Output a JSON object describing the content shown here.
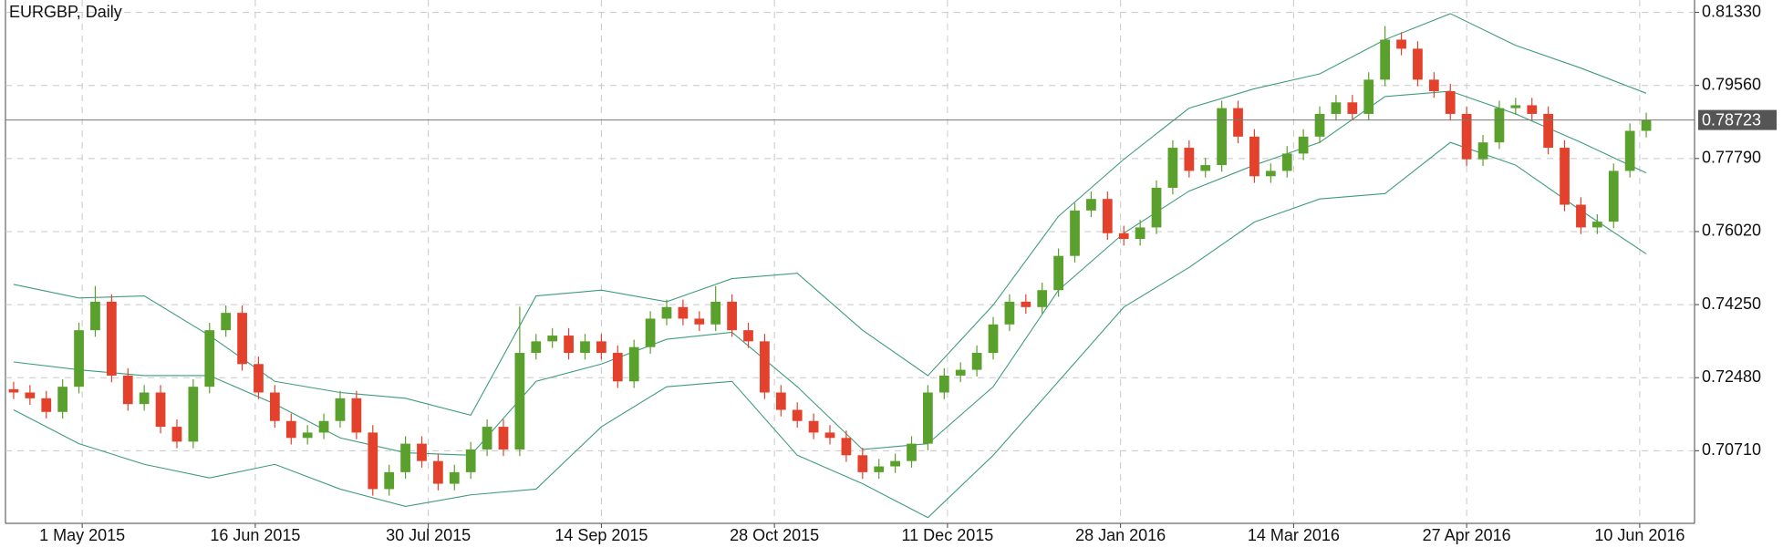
{
  "chart_data": {
    "type": "candlestick",
    "title": "EURGBP, Daily",
    "up_color": "#5aa02c",
    "down_color": "#e3412b",
    "grid": true,
    "xlim": [
      -0.5,
      100.5
    ],
    "xticks": [
      {
        "value": 4.2,
        "label": "1 May 2015"
      },
      {
        "value": 14.8,
        "label": "16 Jun 2015"
      },
      {
        "value": 25.4,
        "label": "30 Jul 2015"
      },
      {
        "value": 36,
        "label": "14 Sep 2015"
      },
      {
        "value": 46.6,
        "label": "28 Oct 2015"
      },
      {
        "value": 57.2,
        "label": "11 Dec 2015"
      },
      {
        "value": 67.8,
        "label": "28 Jan 2016"
      },
      {
        "value": 78.4,
        "label": "14 Mar 2016"
      },
      {
        "value": 89,
        "label": "27 Apr 2016"
      },
      {
        "value": 99.6,
        "label": "10 Jun 2016"
      }
    ],
    "ylim": [
      0.6895,
      0.8163
    ],
    "yticks": [
      {
        "value": 0.8133,
        "label": "0.81330"
      },
      {
        "value": 0.7956,
        "label": "0.79560"
      },
      {
        "value": 0.7779,
        "label": "0.77790"
      },
      {
        "value": 0.7602,
        "label": "0.76020"
      },
      {
        "value": 0.7425,
        "label": "0.74250"
      },
      {
        "value": 0.7248,
        "label": "0.72480"
      },
      {
        "value": 0.7071,
        "label": "0.70710"
      }
    ],
    "last_price": 0.78723,
    "open": [
      0.722,
      0.7212,
      0.7198,
      0.7165,
      0.7226,
      0.7363,
      0.7432,
      0.7253,
      0.7184,
      0.7212,
      0.7129,
      0.7093,
      0.7226,
      0.7363,
      0.7405,
      0.7281,
      0.7212,
      0.7143,
      0.7102,
      0.7115,
      0.7143,
      0.7198,
      0.7115,
      0.6978,
      0.7019,
      0.7088,
      0.7046,
      0.6991,
      0.7019,
      0.7074,
      0.7129,
      0.7074,
      0.7308,
      0.7336,
      0.735,
      0.7308,
      0.7336,
      0.7308,
      0.7239,
      0.7322,
      0.7391,
      0.7419,
      0.7391,
      0.7377,
      0.7432,
      0.7363,
      0.7336,
      0.7212,
      0.717,
      0.7143,
      0.7115,
      0.7102,
      0.706,
      0.7019,
      0.7033,
      0.7046,
      0.7088,
      0.7212,
      0.7253,
      0.7267,
      0.7308,
      0.7377,
      0.7432,
      0.7419,
      0.746,
      0.7543,
      0.7653,
      0.7681,
      0.7598,
      0.7584,
      0.7612,
      0.7708,
      0.7805,
      0.7749,
      0.7763,
      0.7901,
      0.7832,
      0.7736,
      0.7749,
      0.7791,
      0.7832,
      0.7887,
      0.7915,
      0.7887,
      0.797,
      0.8067,
      0.8045,
      0.797,
      0.7942,
      0.7887,
      0.7777,
      0.7818,
      0.7901,
      0.7908,
      0.7887,
      0.7805,
      0.7667,
      0.7612,
      0.7626,
      0.7749,
      0.7846
    ],
    "high": [
      0.7238,
      0.723,
      0.7216,
      0.7244,
      0.7381,
      0.747,
      0.745,
      0.7271,
      0.723,
      0.723,
      0.7147,
      0.7244,
      0.7381,
      0.7423,
      0.7423,
      0.7299,
      0.723,
      0.7161,
      0.7133,
      0.7161,
      0.7216,
      0.7216,
      0.7133,
      0.7037,
      0.7106,
      0.7106,
      0.7064,
      0.7037,
      0.7092,
      0.7147,
      0.7147,
      0.742,
      0.7354,
      0.7368,
      0.7368,
      0.7354,
      0.7354,
      0.7326,
      0.734,
      0.7409,
      0.7437,
      0.7437,
      0.7409,
      0.747,
      0.745,
      0.7381,
      0.7354,
      0.723,
      0.7188,
      0.7161,
      0.7133,
      0.712,
      0.7078,
      0.7051,
      0.7064,
      0.7106,
      0.723,
      0.7271,
      0.7285,
      0.7326,
      0.7395,
      0.745,
      0.745,
      0.7478,
      0.7561,
      0.7671,
      0.7699,
      0.7699,
      0.7616,
      0.763,
      0.7726,
      0.7823,
      0.7823,
      0.7781,
      0.7919,
      0.7919,
      0.785,
      0.7767,
      0.7809,
      0.785,
      0.7905,
      0.7933,
      0.7933,
      0.7988,
      0.81,
      0.8085,
      0.8063,
      0.7988,
      0.796,
      0.7905,
      0.7836,
      0.7919,
      0.7926,
      0.7926,
      0.7905,
      0.7823,
      0.7685,
      0.7644,
      0.7767,
      0.7864,
      0.789
    ],
    "low": [
      0.7196,
      0.7182,
      0.7149,
      0.7149,
      0.721,
      0.7347,
      0.7237,
      0.7168,
      0.7168,
      0.7113,
      0.7077,
      0.7077,
      0.721,
      0.7347,
      0.7265,
      0.7196,
      0.7127,
      0.7086,
      0.7086,
      0.7099,
      0.7127,
      0.7099,
      0.6962,
      0.6962,
      0.7003,
      0.703,
      0.6975,
      0.6975,
      0.7003,
      0.7058,
      0.7058,
      0.7058,
      0.7292,
      0.732,
      0.7292,
      0.7292,
      0.7292,
      0.7223,
      0.7223,
      0.7306,
      0.7375,
      0.7375,
      0.7361,
      0.7361,
      0.7347,
      0.732,
      0.7196,
      0.7154,
      0.7127,
      0.7099,
      0.7086,
      0.7044,
      0.7003,
      0.7003,
      0.7017,
      0.703,
      0.7072,
      0.7196,
      0.7237,
      0.7251,
      0.7292,
      0.7361,
      0.7403,
      0.7403,
      0.7444,
      0.7527,
      0.7637,
      0.7582,
      0.7568,
      0.7568,
      0.7596,
      0.7692,
      0.7733,
      0.7733,
      0.7747,
      0.7816,
      0.772,
      0.772,
      0.7733,
      0.7775,
      0.7816,
      0.7871,
      0.7871,
      0.7871,
      0.7954,
      0.8029,
      0.7954,
      0.7926,
      0.7871,
      0.7761,
      0.7761,
      0.7802,
      0.7885,
      0.7871,
      0.7789,
      0.7651,
      0.7596,
      0.7596,
      0.761,
      0.7733,
      0.783
    ],
    "close": [
      0.7212,
      0.7198,
      0.7165,
      0.7226,
      0.7363,
      0.7432,
      0.7253,
      0.7184,
      0.7212,
      0.7129,
      0.7093,
      0.7226,
      0.7363,
      0.7405,
      0.7281,
      0.7212,
      0.7143,
      0.7102,
      0.7115,
      0.7143,
      0.7198,
      0.7115,
      0.6978,
      0.7019,
      0.7088,
      0.7046,
      0.6991,
      0.7019,
      0.7074,
      0.7129,
      0.7074,
      0.7308,
      0.7336,
      0.735,
      0.7308,
      0.7336,
      0.7308,
      0.7239,
      0.7322,
      0.7391,
      0.7419,
      0.7391,
      0.7377,
      0.7432,
      0.7363,
      0.7336,
      0.7212,
      0.717,
      0.7143,
      0.7115,
      0.7102,
      0.706,
      0.7019,
      0.7033,
      0.7046,
      0.7088,
      0.7212,
      0.7253,
      0.7267,
      0.7308,
      0.7377,
      0.7432,
      0.7419,
      0.746,
      0.7543,
      0.7653,
      0.7681,
      0.7598,
      0.7584,
      0.7612,
      0.7708,
      0.7805,
      0.7749,
      0.7763,
      0.7901,
      0.7832,
      0.7736,
      0.7749,
      0.7791,
      0.7832,
      0.7887,
      0.7915,
      0.7887,
      0.797,
      0.8067,
      0.8045,
      0.797,
      0.7942,
      0.7887,
      0.7777,
      0.7818,
      0.7901,
      0.7908,
      0.7887,
      0.7805,
      0.7667,
      0.7612,
      0.7626,
      0.7749,
      0.7846,
      0.7872
    ],
    "bands": {
      "color": "#3f9b7c",
      "x": [
        0,
        4,
        8,
        12,
        16,
        20,
        24,
        28,
        32,
        36,
        40,
        44,
        48,
        52,
        56,
        60,
        64,
        68,
        72,
        76,
        80,
        84,
        88,
        92,
        96,
        100
      ],
      "upper": [
        0.7474,
        0.7441,
        0.7446,
        0.735,
        0.7239,
        0.7212,
        0.7198,
        0.7157,
        0.7446,
        0.746,
        0.7432,
        0.7488,
        0.7501,
        0.7363,
        0.7253,
        0.7424,
        0.7639,
        0.7777,
        0.7901,
        0.7948,
        0.7984,
        0.8067,
        0.813,
        0.8053,
        0.7998,
        0.7937
      ],
      "middle": [
        0.7286,
        0.7267,
        0.7253,
        0.7253,
        0.7184,
        0.7102,
        0.7066,
        0.706,
        0.7239,
        0.7281,
        0.7341,
        0.7358,
        0.7226,
        0.7074,
        0.7088,
        0.7226,
        0.746,
        0.7598,
        0.77,
        0.7763,
        0.7818,
        0.7929,
        0.7942,
        0.7887,
        0.7818,
        0.7744
      ],
      "lower": [
        0.717,
        0.7088,
        0.7038,
        0.7005,
        0.7038,
        0.6978,
        0.6936,
        0.6964,
        0.6978,
        0.7129,
        0.7226,
        0.7239,
        0.706,
        0.6991,
        0.6909,
        0.706,
        0.7239,
        0.7419,
        0.7515,
        0.7625,
        0.7681,
        0.7694,
        0.7818,
        0.7763,
        0.7653,
        0.7548
      ]
    }
  }
}
